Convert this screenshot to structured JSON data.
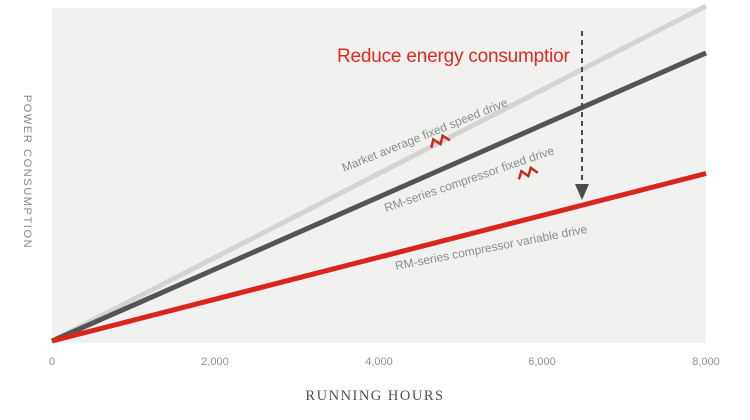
{
  "chart_data": {
    "type": "line",
    "annotation": "Reduce energy consumptior",
    "annotation_color": "#e3281e",
    "xlabel": "RUNNING HOURS",
    "ylabel": "POWER CONSUMPTION",
    "x_ticks": [
      "0",
      "2,000",
      "4,000",
      "6,000",
      "8,000"
    ],
    "xlim": [
      0,
      8000
    ],
    "ylim_relative": [
      0,
      1
    ],
    "grid": false,
    "legend": "labels-along-lines",
    "plot_background": "#f1f1f0",
    "arrow": {
      "style": "dashed-vertical-down",
      "x_value": 6500,
      "color": "#4b4b4b",
      "meaning": "reduction from fixed-speed lines down to variable drive line"
    },
    "series": [
      {
        "name": "Market average fixed speed drive",
        "color": "#d3d3d2",
        "x": [
          0,
          8000
        ],
        "y_relative": [
          0,
          1.0
        ],
        "spellcheck_squiggle": true
      },
      {
        "name": "RM-series compressor fixed drive",
        "color": "#545456",
        "x": [
          0,
          8000
        ],
        "y_relative": [
          0,
          0.86
        ],
        "spellcheck_squiggle": true
      },
      {
        "name": "RM-series compressor variable drive",
        "color": "#da241c",
        "x": [
          0,
          8000
        ],
        "y_relative": [
          0,
          0.5
        ],
        "spellcheck_squiggle": false
      }
    ],
    "squiggle_color": "#c8281c"
  }
}
